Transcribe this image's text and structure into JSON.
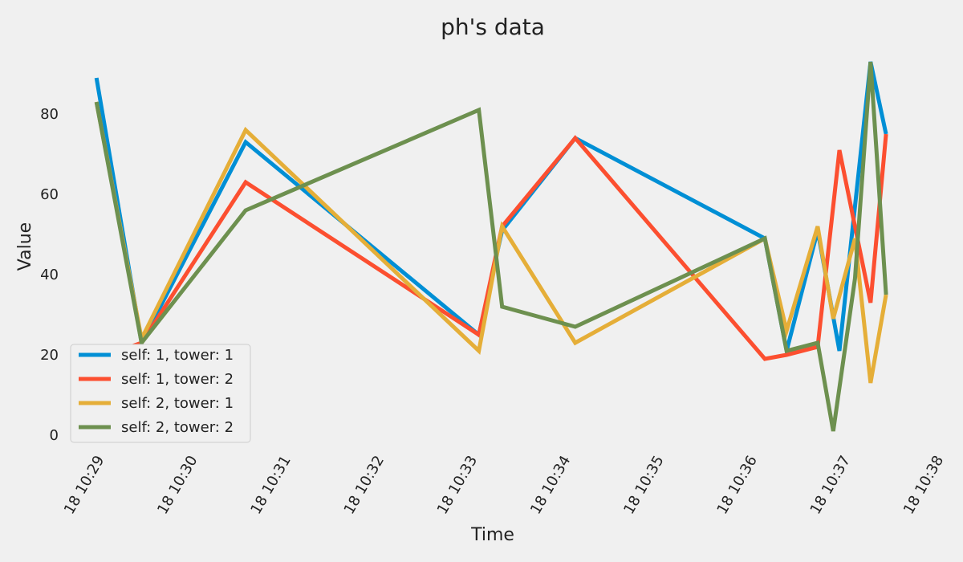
{
  "chart_data": {
    "type": "line",
    "title": "ph's data",
    "xlabel": "Time",
    "ylabel": "Value",
    "x_ticks": [
      "18 10:29",
      "18 10:30",
      "18 10:31",
      "18 10:32",
      "18 10:33",
      "18 10:34",
      "18 10:35",
      "18 10:36",
      "18 10:37",
      "18 10:38"
    ],
    "y_ticks": [
      0,
      20,
      40,
      60,
      80
    ],
    "xlim": [
      "10:28:45",
      "10:38:00"
    ],
    "ylim": [
      -2,
      96
    ],
    "legend_position": "lower-left",
    "grid": false,
    "series": [
      {
        "name": "self: 1, tower: 1",
        "color": "#008fd5",
        "x": [
          "10:28:58",
          "10:29:27",
          "10:30:34",
          "10:33:04",
          "10:33:19",
          "10:34:06",
          "10:36:08",
          "10:36:22",
          "10:36:42",
          "10:36:56",
          "10:37:16",
          "10:37:26"
        ],
        "y": [
          89,
          23,
          73,
          25,
          51,
          74,
          49,
          21,
          51,
          21,
          93,
          75
        ]
      },
      {
        "name": "self: 1, tower: 2",
        "color": "#fc4f30",
        "x": [
          "10:28:58",
          "10:29:27",
          "10:30:34",
          "10:33:04",
          "10:33:19",
          "10:34:06",
          "10:36:08",
          "10:36:22",
          "10:36:42",
          "10:36:56",
          "10:37:16",
          "10:37:26"
        ],
        "y": [
          19,
          23,
          63,
          25,
          52,
          74,
          19,
          20,
          22,
          71,
          33,
          75
        ]
      },
      {
        "name": "self: 2, tower: 1",
        "color": "#e5ae38",
        "x": [
          "10:28:58",
          "10:29:27",
          "10:30:34",
          "10:33:04",
          "10:33:19",
          "10:34:06",
          "10:36:08",
          "10:36:22",
          "10:36:42",
          "10:36:52",
          "10:37:06",
          "10:37:16",
          "10:37:26"
        ],
        "y": [
          83,
          24,
          76,
          21,
          52,
          23,
          49,
          26,
          52,
          29,
          49,
          13,
          35
        ]
      },
      {
        "name": "self: 2, tower: 2",
        "color": "#6d904f",
        "x": [
          "10:28:58",
          "10:29:27",
          "10:30:34",
          "10:33:04",
          "10:33:19",
          "10:34:06",
          "10:36:08",
          "10:36:22",
          "10:36:42",
          "10:36:52",
          "10:37:06",
          "10:37:16",
          "10:37:26"
        ],
        "y": [
          83,
          23,
          56,
          81,
          32,
          27,
          49,
          21,
          23,
          1,
          39,
          93,
          35
        ]
      }
    ]
  }
}
